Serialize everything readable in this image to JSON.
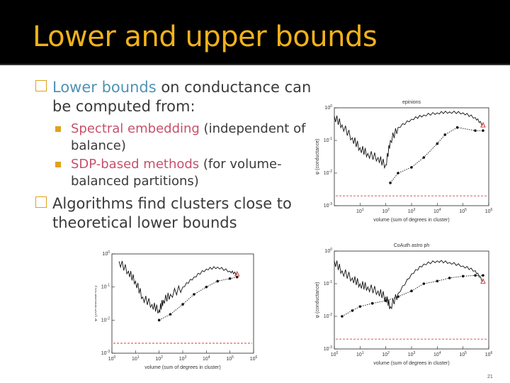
{
  "slide": {
    "title": "Lower and upper bounds",
    "page_number": "21",
    "colors": {
      "title": "#f2b21a",
      "highlight": "#4f93b5",
      "pink": "#c8506a",
      "bullet": "#e0a21a"
    }
  },
  "bullets": [
    {
      "pre": "",
      "hl": "Lower bounds",
      "post": " on conductance can be computed from:",
      "sub": [
        {
          "hl": "Spectral embedding",
          "post": " (independent of balance)"
        },
        {
          "hl": "SDP-based methods",
          "post": " (for volume-balanced partitions)"
        }
      ]
    },
    {
      "pre": "Algorithms find clusters close to theoretical lower bounds",
      "hl": "",
      "post": "",
      "sub": []
    }
  ],
  "chart_data": [
    {
      "type": "line",
      "title": "epinions",
      "xlabel": "volume (sum of degrees in cluster)",
      "ylabel": "φ (conductance)",
      "xlim": [
        1,
        1000000
      ],
      "ylim": [
        0.001,
        1
      ],
      "xscale": "log",
      "yscale": "log",
      "xtick_labels": [
        "10^1",
        "10^2",
        "10^3",
        "10^4",
        "10^5",
        "10^6"
      ],
      "ytick_labels": [
        "10^0",
        "10^-1",
        "10^-2",
        "10^-3"
      ],
      "series": [
        {
          "x": [
            1,
            2,
            5,
            10,
            20,
            50,
            100,
            150,
            300,
            1000,
            3000,
            10000,
            30000,
            100000,
            300000,
            600000
          ],
          "y": [
            0.55,
            0.3,
            0.12,
            0.06,
            0.04,
            0.03,
            0.018,
            0.1,
            0.25,
            0.45,
            0.6,
            0.7,
            0.75,
            0.7,
            0.5,
            0.3
          ]
        },
        {
          "x": [
            150,
            300,
            1000,
            3000,
            10000,
            20000,
            60000,
            300000,
            600000
          ],
          "y": [
            0.005,
            0.01,
            0.015,
            0.03,
            0.08,
            0.15,
            0.25,
            0.2,
            0.2
          ]
        },
        {
          "x": [
            1,
            1000000
          ],
          "y": [
            0.002,
            0.002
          ]
        }
      ]
    },
    {
      "type": "line",
      "title": "CoAuth astro ph",
      "xlabel": "volume (sum of degrees in cluster)",
      "ylabel": "φ (conductance)",
      "xlim": [
        1,
        1000000
      ],
      "ylim": [
        0.001,
        1
      ],
      "xscale": "log",
      "yscale": "log",
      "xtick_labels": [
        "10^0",
        "10^1",
        "10^2",
        "10^3",
        "10^4",
        "10^5",
        "10^6"
      ],
      "ytick_labels": [
        "10^0",
        "10^-1",
        "10^-2",
        "10^-3"
      ],
      "series": [
        {
          "x": [
            1,
            2,
            5,
            10,
            20,
            50,
            100,
            150,
            300,
            1000,
            3000,
            10000,
            30000,
            100000,
            300000,
            600000
          ],
          "y": [
            0.5,
            0.25,
            0.15,
            0.1,
            0.08,
            0.06,
            0.04,
            0.02,
            0.05,
            0.2,
            0.4,
            0.5,
            0.45,
            0.35,
            0.25,
            0.12
          ]
        },
        {
          "x": [
            2,
            5,
            10,
            30,
            100,
            300,
            1000,
            3000,
            10000,
            30000,
            100000,
            300000,
            600000
          ],
          "y": [
            0.01,
            0.015,
            0.02,
            0.025,
            0.03,
            0.04,
            0.06,
            0.1,
            0.12,
            0.15,
            0.17,
            0.18,
            0.18
          ]
        },
        {
          "x": [
            1,
            1000000
          ],
          "y": [
            0.002,
            0.002
          ]
        }
      ]
    },
    {
      "type": "line",
      "title": "",
      "xlabel": "volume (sum of degrees in cluster)",
      "ylabel": "φ (conductance)",
      "xlim": [
        1,
        1000000
      ],
      "ylim": [
        0.001,
        1
      ],
      "xscale": "log",
      "yscale": "log",
      "xtick_labels": [
        "10^0",
        "10^1",
        "10^2",
        "10^3",
        "10^4",
        "10^5",
        "10^6"
      ],
      "ytick_labels": [
        "10^0",
        "10^-1",
        "10^-2",
        "10^-3"
      ],
      "series": [
        {
          "x": [
            2,
            5,
            10,
            20,
            50,
            100,
            150,
            300,
            1000,
            3000,
            10000,
            30000,
            100000,
            200000
          ],
          "y": [
            0.6,
            0.3,
            0.15,
            0.05,
            0.03,
            0.02,
            0.04,
            0.06,
            0.1,
            0.2,
            0.35,
            0.4,
            0.3,
            0.25
          ]
        },
        {
          "x": [
            100,
            300,
            1000,
            3000,
            10000,
            30000,
            100000,
            200000
          ],
          "y": [
            0.01,
            0.015,
            0.03,
            0.06,
            0.1,
            0.15,
            0.18,
            0.2
          ]
        },
        {
          "x": [
            1,
            1000000
          ],
          "y": [
            0.002,
            0.002
          ]
        }
      ]
    }
  ]
}
